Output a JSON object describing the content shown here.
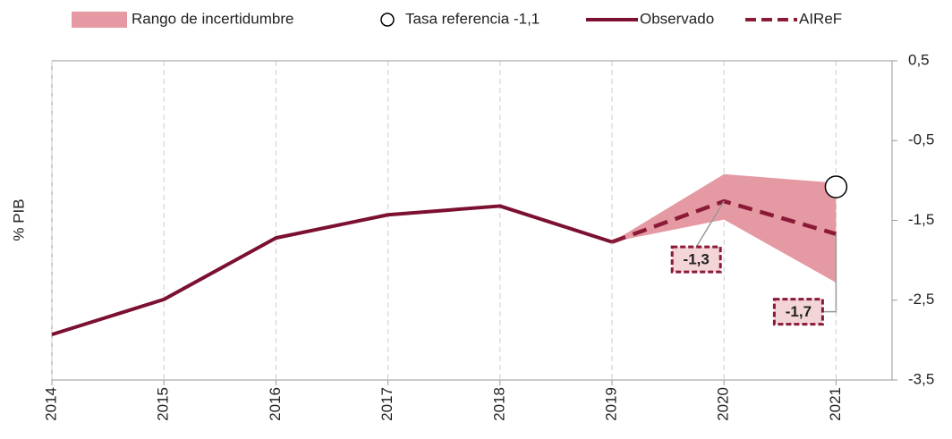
{
  "chart_data": {
    "type": "line",
    "y_label": "% PIB",
    "x": [
      2014,
      2015,
      2016,
      2017,
      2018,
      2019,
      2020,
      2021
    ],
    "xlim": [
      2014,
      2021.5
    ],
    "xticks": [
      2014,
      2015,
      2016,
      2017,
      2018,
      2019,
      2020,
      2021
    ],
    "ylim": [
      -3.5,
      0.5
    ],
    "yticks": [
      {
        "value": 0.5,
        "label": "0,5"
      },
      {
        "value": -0.5,
        "label": "-0,5"
      },
      {
        "value": -1.5,
        "label": "-1,5"
      },
      {
        "value": -2.5,
        "label": "-2,5"
      },
      {
        "value": -3.5,
        "label": "-3,5"
      }
    ],
    "x_grid": true,
    "legend": "top",
    "series": [
      {
        "name": "Rango de incertidumbre",
        "kind": "band",
        "color": "#e59aa3",
        "lower": [
          null,
          null,
          null,
          null,
          null,
          -1.77,
          -1.49,
          -2.28
        ],
        "upper": [
          null,
          null,
          null,
          null,
          null,
          -1.77,
          -0.92,
          -1.03
        ]
      },
      {
        "name": "Tasa referencia -1,1",
        "kind": "marker",
        "color": "#000000",
        "values": [
          null,
          null,
          null,
          null,
          null,
          null,
          null,
          -1.08
        ]
      },
      {
        "name": "Observado",
        "kind": "line",
        "color": "#7b1030",
        "values": [
          -2.93,
          -2.49,
          -1.72,
          -1.43,
          -1.32,
          -1.77,
          null,
          null
        ]
      },
      {
        "name": "AIReF",
        "kind": "dashed",
        "color": "#8b1a38",
        "values": [
          null,
          null,
          null,
          null,
          null,
          -1.77,
          -1.26,
          -1.67
        ],
        "value_labels": [
          null,
          null,
          null,
          null,
          null,
          null,
          "-1,3",
          "-1,7"
        ]
      }
    ]
  }
}
